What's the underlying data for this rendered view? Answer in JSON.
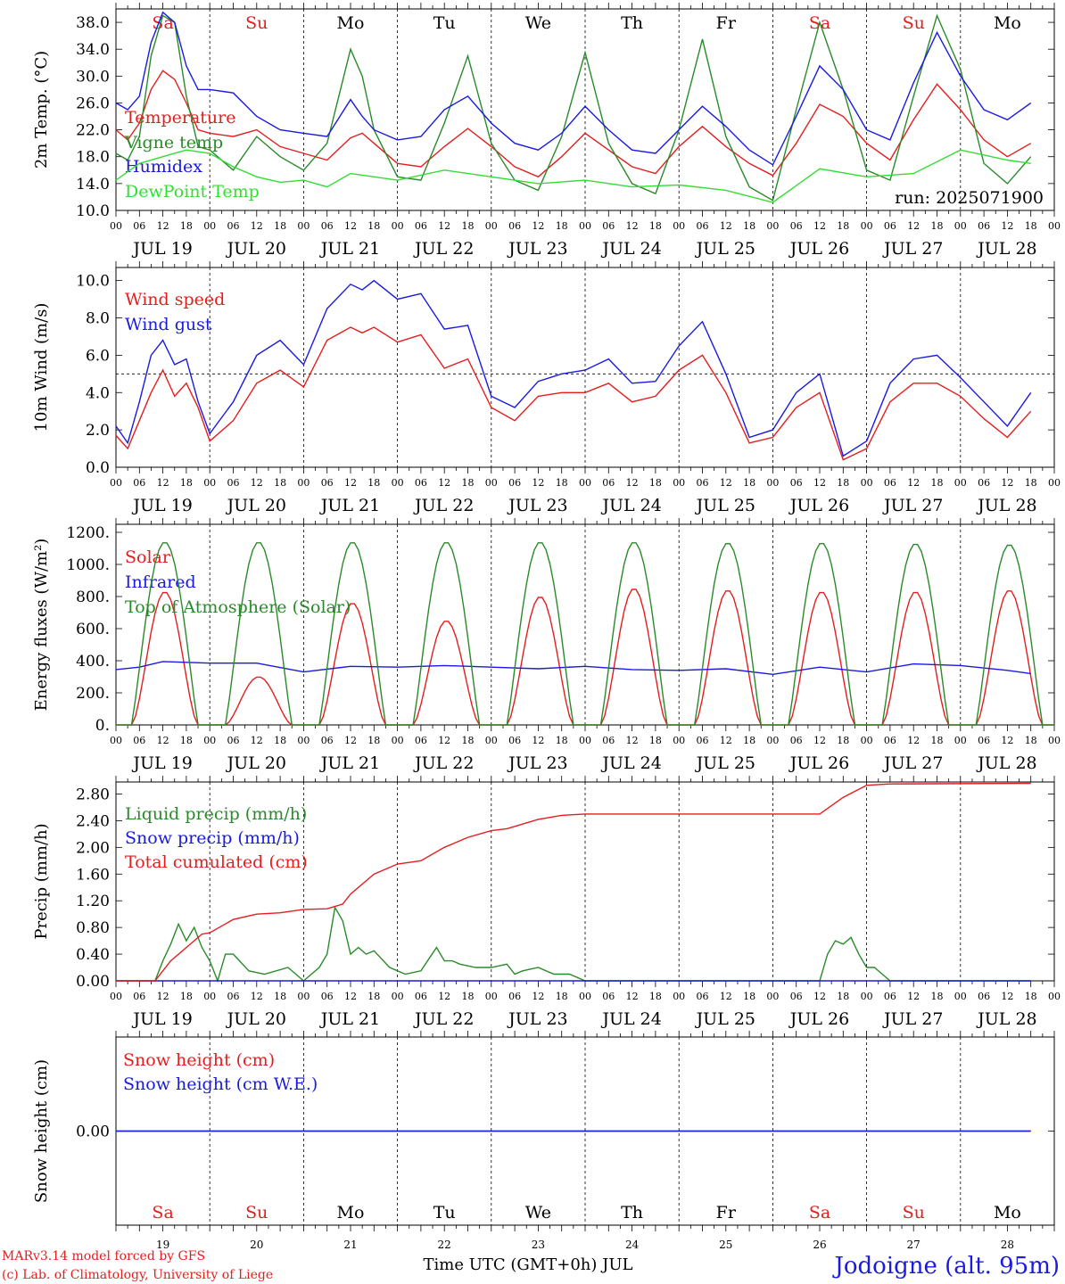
{
  "x_hours": [
    "00",
    "06",
    "12",
    "18"
  ],
  "day_dates": [
    "JUL 19",
    "JUL 20",
    "JUL 21",
    "JUL 22",
    "JUL 23",
    "JUL 24",
    "JUL 25",
    "JUL 26",
    "JUL 27",
    "JUL 28"
  ],
  "weekdays": [
    {
      "label": "Sa",
      "color": "#e41e1e"
    },
    {
      "label": "Su",
      "color": "#e41e1e"
    },
    {
      "label": "Mo",
      "color": "#000000"
    },
    {
      "label": "Tu",
      "color": "#000000"
    },
    {
      "label": "We",
      "color": "#000000"
    },
    {
      "label": "Th",
      "color": "#000000"
    },
    {
      "label": "Fr",
      "color": "#000000"
    },
    {
      "label": "Sa",
      "color": "#e41e1e"
    },
    {
      "label": "Su",
      "color": "#e41e1e"
    },
    {
      "label": "Mo",
      "color": "#000000"
    }
  ],
  "bottom_day_numbers": [
    "19",
    "20",
    "21",
    "22",
    "23",
    "24",
    "25",
    "26",
    "27",
    "28"
  ],
  "footer": {
    "model": "MARv3.14 model forced by GFS",
    "credit": "(c) Lab. of Climatology, University of Liege",
    "time_axis": "Time UTC (GMT+0h) JUL",
    "station": "Jodoigne (alt. 95m)"
  },
  "colors": {
    "red": "#e41e1e",
    "green": "#2a8a2a",
    "blue": "#1a1ae0",
    "lightgreen": "#33dd33"
  },
  "chart_data": [
    {
      "type": "line",
      "ylabel": "2m Temp. (°C)",
      "ylim": [
        10,
        40
      ],
      "ticks": [
        "10.0",
        "14.0",
        "18.0",
        "22.0",
        "26.0",
        "30.0",
        "34.0",
        "38.0"
      ],
      "annotation": "run: 2025071900",
      "x_unit": "hours since JUL 19 00 UTC",
      "series": [
        {
          "name": "Temperature",
          "color": "#e41e1e",
          "x": [
            0,
            3,
            6,
            9,
            12,
            15,
            18,
            21,
            24,
            30,
            36,
            42,
            48,
            54,
            60,
            63,
            66,
            72,
            78,
            84,
            90,
            96,
            102,
            108,
            114,
            120,
            126,
            132,
            138,
            144,
            150,
            156,
            162,
            168,
            174,
            180,
            186,
            192,
            198,
            204,
            210,
            216,
            222,
            228,
            234
          ],
          "y": [
            22,
            20.5,
            23,
            28,
            30.8,
            29.5,
            26,
            22,
            21.5,
            21,
            22,
            19.5,
            18.5,
            17.5,
            20.8,
            21.5,
            20,
            17,
            16.5,
            19.5,
            22.2,
            19.5,
            16.5,
            15,
            18,
            21.5,
            19,
            16.5,
            15.5,
            19.5,
            22.5,
            19.5,
            17,
            15.2,
            20,
            25.8,
            24,
            20,
            17.5,
            23.5,
            28.8,
            25,
            20.5,
            18,
            20
          ]
        },
        {
          "name": "Vigne temp",
          "color": "#2a8a2a",
          "x": [
            0,
            3,
            6,
            9,
            12,
            15,
            18,
            21,
            24,
            30,
            36,
            42,
            48,
            54,
            60,
            63,
            66,
            72,
            78,
            84,
            90,
            96,
            102,
            108,
            114,
            120,
            126,
            132,
            138,
            144,
            150,
            156,
            162,
            168,
            174,
            180,
            186,
            192,
            198,
            204,
            210,
            216,
            222,
            228,
            234
          ],
          "y": [
            18.5,
            17.5,
            21,
            33,
            39,
            38,
            27,
            19.5,
            19,
            16,
            21,
            18,
            16,
            20,
            34,
            30,
            22,
            15,
            14.5,
            23,
            33,
            20,
            14.5,
            13,
            21,
            33.5,
            20,
            14,
            12.5,
            22,
            35.5,
            21,
            13.5,
            11.5,
            25,
            38,
            28,
            16,
            14.5,
            27,
            39,
            31,
            17,
            14,
            18
          ]
        },
        {
          "name": "Humidex",
          "color": "#1a1ae0",
          "x": [
            0,
            3,
            6,
            9,
            12,
            15,
            18,
            21,
            24,
            30,
            36,
            42,
            48,
            54,
            60,
            63,
            66,
            72,
            78,
            84,
            90,
            96,
            102,
            108,
            114,
            120,
            126,
            132,
            138,
            144,
            150,
            156,
            162,
            168,
            174,
            180,
            186,
            192,
            198,
            204,
            210,
            216,
            222,
            228,
            234
          ],
          "y": [
            26,
            25,
            27,
            35,
            39.5,
            38,
            31.5,
            28,
            28,
            27.5,
            24,
            22,
            21.5,
            21,
            26.5,
            24,
            22,
            20.5,
            21,
            25,
            27,
            23,
            20,
            19,
            21.5,
            25.5,
            22,
            19,
            18.5,
            22,
            25.5,
            22.5,
            19,
            16.8,
            24,
            31.5,
            28,
            22,
            20.5,
            29,
            36.5,
            30,
            25,
            23.5,
            26
          ]
        },
        {
          "name": "DewPoint Temp",
          "color": "#33dd33",
          "x": [
            0,
            6,
            12,
            18,
            24,
            30,
            36,
            42,
            48,
            54,
            60,
            66,
            72,
            84,
            96,
            108,
            120,
            132,
            144,
            156,
            168,
            180,
            192,
            204,
            216,
            228,
            234
          ],
          "y": [
            14.5,
            17,
            18,
            19,
            18.5,
            16.5,
            15,
            14.2,
            14.5,
            13.5,
            15.5,
            15,
            14.5,
            16,
            15,
            14,
            14.5,
            13.5,
            13.8,
            13,
            11.2,
            16.2,
            15,
            15.5,
            19,
            17.5,
            17
          ]
        }
      ]
    },
    {
      "type": "line",
      "ylabel": "10m Wind (m/s)",
      "ylim": [
        0,
        10.7
      ],
      "ticks": [
        "0.0",
        "2.0",
        "4.0",
        "6.0",
        "8.0",
        "10.0"
      ],
      "reference_line": 5,
      "x_unit": "hours since JUL 19 00 UTC",
      "series": [
        {
          "name": "Wind speed",
          "color": "#e41e1e",
          "x": [
            0,
            3,
            6,
            9,
            12,
            15,
            18,
            21,
            24,
            30,
            36,
            42,
            48,
            54,
            60,
            63,
            66,
            72,
            78,
            84,
            90,
            96,
            102,
            108,
            114,
            120,
            126,
            132,
            138,
            144,
            150,
            156,
            162,
            168,
            174,
            180,
            186,
            192,
            198,
            204,
            210,
            216,
            222,
            228,
            234
          ],
          "y": [
            1.7,
            1.0,
            2.5,
            4.0,
            5.2,
            3.8,
            4.5,
            3.2,
            1.4,
            2.5,
            4.5,
            5.2,
            4.3,
            6.8,
            7.5,
            7.2,
            7.5,
            6.7,
            7.1,
            5.3,
            5.8,
            3.2,
            2.5,
            3.8,
            4.0,
            4.0,
            4.5,
            3.5,
            3.8,
            5.2,
            6.0,
            4.0,
            1.3,
            1.6,
            3.2,
            4.0,
            0.4,
            1.0,
            3.5,
            4.5,
            4.5,
            3.8,
            2.6,
            1.6,
            3.0
          ]
        },
        {
          "name": "Wind gust",
          "color": "#1a1ae0",
          "x": [
            0,
            3,
            6,
            9,
            12,
            15,
            18,
            21,
            24,
            30,
            36,
            42,
            48,
            54,
            60,
            63,
            66,
            72,
            78,
            84,
            90,
            96,
            102,
            108,
            114,
            120,
            126,
            132,
            138,
            144,
            150,
            156,
            162,
            168,
            174,
            180,
            186,
            192,
            198,
            204,
            210,
            216,
            222,
            228,
            234
          ],
          "y": [
            2.2,
            1.3,
            3.5,
            6.0,
            6.8,
            5.5,
            5.8,
            3.5,
            1.8,
            3.5,
            6.0,
            6.8,
            5.5,
            8.5,
            9.8,
            9.5,
            10.0,
            9.0,
            9.3,
            7.4,
            7.6,
            3.8,
            3.2,
            4.6,
            5.0,
            5.2,
            5.8,
            4.5,
            4.6,
            6.5,
            7.8,
            5.0,
            1.6,
            2.0,
            4.0,
            5.0,
            0.6,
            1.4,
            4.5,
            5.8,
            6.0,
            4.8,
            3.5,
            2.2,
            4.0
          ]
        }
      ]
    },
    {
      "type": "line",
      "ylabel": "Energy fluxes (W/m²)",
      "ylim": [
        0,
        1250
      ],
      "ticks": [
        "0.",
        "200.",
        "400.",
        "600.",
        "800.",
        "1000.",
        "1200."
      ],
      "x_unit": "hours since JUL 19 00 UTC",
      "series": [
        {
          "name": "Solar",
          "color": "#e41e1e",
          "daily_peak": [
            830,
            300,
            760,
            650,
            800,
            850,
            840,
            830,
            830,
            840
          ]
        },
        {
          "name": "Infrared",
          "color": "#1a1ae0",
          "x": [
            0,
            6,
            12,
            18,
            24,
            36,
            48,
            60,
            72,
            84,
            96,
            108,
            120,
            132,
            144,
            156,
            168,
            180,
            192,
            204,
            216,
            228,
            234
          ],
          "y": [
            345,
            360,
            395,
            390,
            385,
            385,
            330,
            365,
            360,
            370,
            360,
            350,
            365,
            345,
            340,
            350,
            315,
            360,
            330,
            380,
            370,
            340,
            320
          ]
        },
        {
          "name": "Top of Atmosphere (Solar)",
          "color": "#2a8a2a",
          "daily_peak": [
            1140,
            1140,
            1140,
            1140,
            1140,
            1140,
            1135,
            1135,
            1130,
            1125
          ]
        }
      ]
    },
    {
      "type": "line",
      "ylabel": "Precip (mm/h)",
      "ylim": [
        0,
        2.98
      ],
      "ticks": [
        "0.00",
        "0.40",
        "0.80",
        "1.20",
        "1.60",
        "2.00",
        "2.40",
        "2.80"
      ],
      "x_unit": "hours since JUL 19 00 UTC",
      "series": [
        {
          "name": "Liquid precip (mm/h)",
          "color": "#2a8a2a",
          "x": [
            0,
            10,
            12,
            14,
            16,
            18,
            20,
            22,
            24,
            26,
            28,
            30,
            34,
            38,
            44,
            48,
            52,
            54,
            56,
            58,
            60,
            62,
            64,
            66,
            70,
            74,
            78,
            82,
            84,
            86,
            88,
            92,
            96,
            100,
            102,
            104,
            108,
            112,
            116,
            120,
            180,
            182,
            184,
            186,
            188,
            190,
            192,
            194,
            196,
            198,
            234
          ],
          "y": [
            0,
            0,
            0.3,
            0.55,
            0.85,
            0.6,
            0.8,
            0.5,
            0.3,
            0,
            0.4,
            0.4,
            0.15,
            0.1,
            0.2,
            0,
            0.2,
            0.4,
            1.1,
            0.9,
            0.4,
            0.5,
            0.4,
            0.45,
            0.2,
            0.1,
            0.15,
            0.5,
            0.3,
            0.3,
            0.25,
            0.2,
            0.2,
            0.25,
            0.1,
            0.15,
            0.2,
            0.1,
            0.1,
            0,
            0,
            0.4,
            0.6,
            0.55,
            0.65,
            0.4,
            0.2,
            0.2,
            0.1,
            0,
            0
          ]
        },
        {
          "name": "Snow precip (mm/h)",
          "color": "#1a1ae0",
          "x": [
            0,
            234
          ],
          "y": [
            0,
            0
          ]
        },
        {
          "name": "Total cumulated (cm)",
          "color": "#e41e1e",
          "x": [
            0,
            10,
            14,
            18,
            22,
            24,
            30,
            36,
            42,
            48,
            54,
            58,
            60,
            66,
            72,
            78,
            84,
            90,
            96,
            100,
            108,
            114,
            120,
            180,
            186,
            192,
            198,
            234
          ],
          "y": [
            0,
            0,
            0.3,
            0.5,
            0.7,
            0.72,
            0.92,
            1.0,
            1.02,
            1.07,
            1.08,
            1.15,
            1.3,
            1.6,
            1.75,
            1.8,
            2.0,
            2.15,
            2.25,
            2.28,
            2.42,
            2.48,
            2.5,
            2.5,
            2.75,
            2.93,
            2.95,
            2.96
          ]
        }
      ]
    },
    {
      "type": "line",
      "ylabel": "Snow height (cm)",
      "ylim": [
        -1,
        1
      ],
      "ticks": [
        "0.00"
      ],
      "x_unit": "hours since JUL 19 00 UTC",
      "series": [
        {
          "name": "Snow height (cm)",
          "color": "#e41e1e",
          "x": [
            0,
            234
          ],
          "y": [
            0,
            0
          ]
        },
        {
          "name": "Snow height (cm W.E.)",
          "color": "#1a1ae0",
          "x": [
            0,
            234
          ],
          "y": [
            0,
            0
          ]
        }
      ]
    }
  ]
}
